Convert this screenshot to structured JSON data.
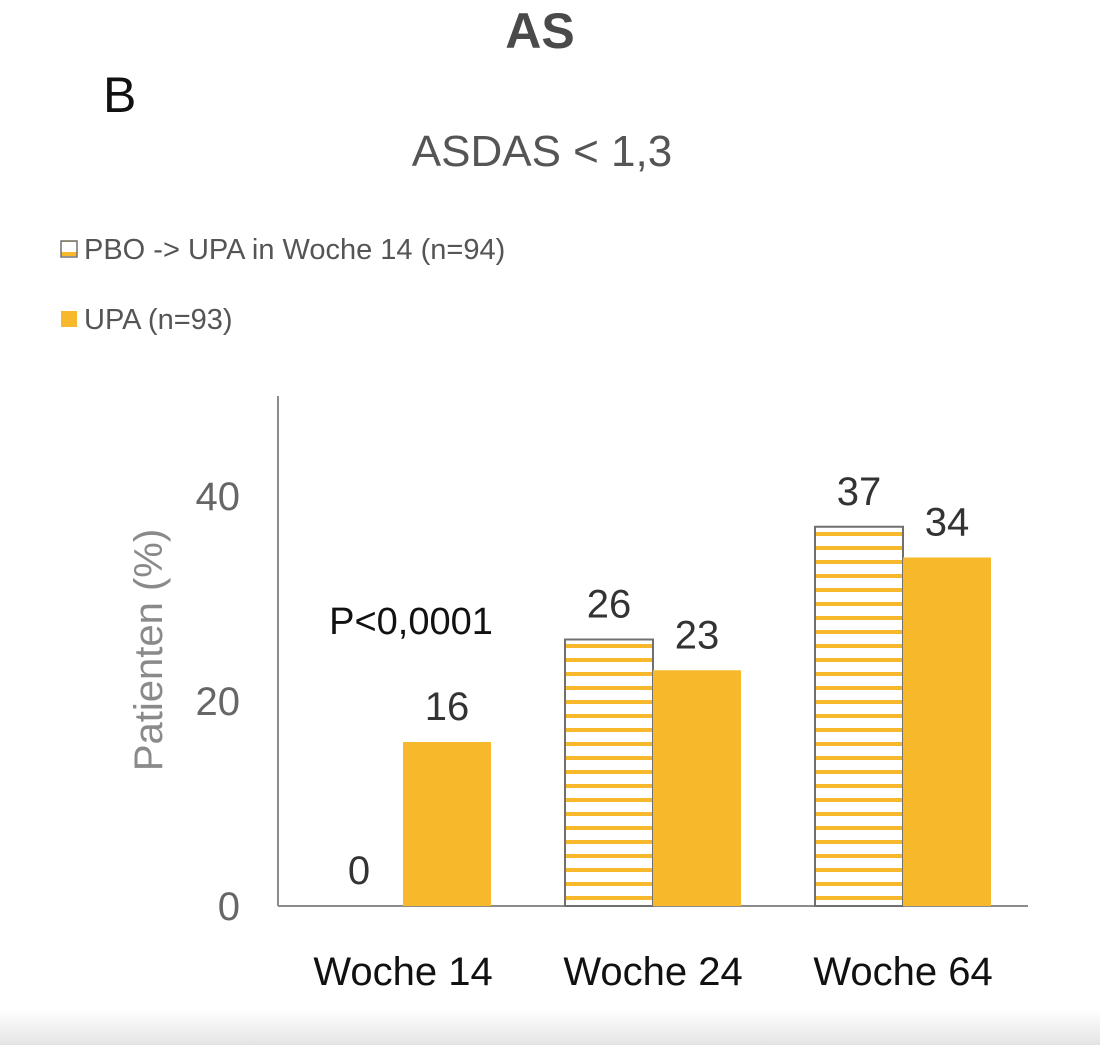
{
  "figure": {
    "header": "AS",
    "panel_label": "B"
  },
  "colors": {
    "upa": "#f7b92b",
    "pbo_stripe": "#f7b92b",
    "pbo_border": "#707070",
    "axis": "#8c8c8c",
    "axis_text": "#666666",
    "value_text": "#333333"
  },
  "chart_data": {
    "type": "bar",
    "title": "ASDAS < 1,3",
    "ylabel": "Patienten (%)",
    "xlabel": "",
    "ylim": [
      0,
      50
    ],
    "yticks": [
      0,
      20,
      40
    ],
    "categories": [
      "Woche 14",
      "Woche 24",
      "Woche 64"
    ],
    "series": [
      {
        "name": "PBO -> UPA in Woche 14 (n=94)",
        "pattern": "striped",
        "values": [
          0,
          26,
          37
        ]
      },
      {
        "name": "UPA (n=93)",
        "pattern": "solid",
        "values": [
          16,
          23,
          34
        ]
      }
    ],
    "legend_position": "top-left",
    "grid": false,
    "annotations": [
      {
        "text": "P<0,0001",
        "category": "Woche 14"
      }
    ]
  }
}
